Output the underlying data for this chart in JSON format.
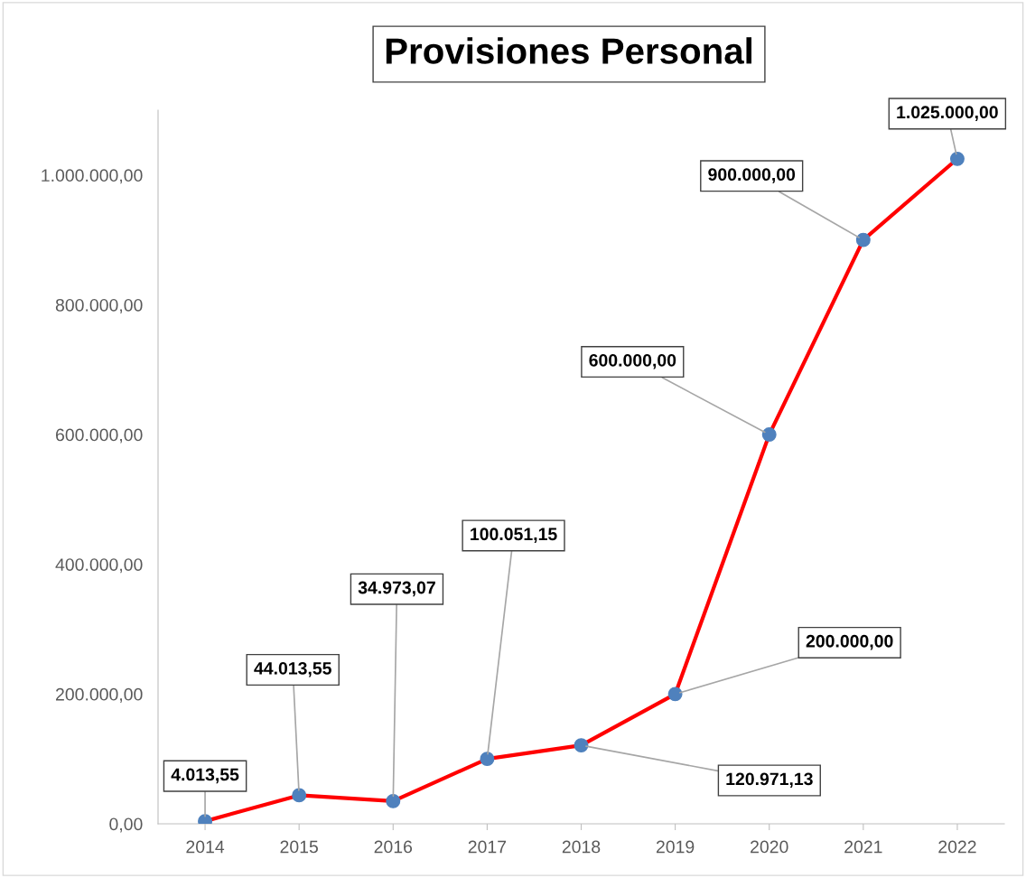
{
  "chart_data": {
    "type": "line",
    "title": "Provisiones Personal",
    "categories": [
      "2014",
      "2015",
      "2016",
      "2017",
      "2018",
      "2019",
      "2020",
      "2021",
      "2022"
    ],
    "series": [
      {
        "color": "#ff0000",
        "colors": [
          "#4f81bd",
          "#4f81bd",
          "#4f81bd",
          "#4f81bd",
          "#4f81bd",
          "#4f81bd",
          "#4f81bd",
          "#4f81bd",
          "#4f81bd"
        ],
        "values": [
          4013.55,
          44013.55,
          34973.07,
          100051.15,
          120971.13,
          200000,
          600000,
          900000,
          1025000
        ],
        "value_labels": [
          "4.013,55",
          "44.013,55",
          "34.973,07",
          "100.051,15",
          "120.971,13",
          "200.000,00",
          "600.000,00",
          "900.000,00",
          "1.025.000,00"
        ]
      }
    ],
    "ylim": [
      0,
      1100000
    ],
    "yticks": [
      {
        "value": 0,
        "label": "0,00"
      },
      {
        "value": 200000,
        "label": "200.000,00"
      },
      {
        "value": 400000,
        "label": "400.000,00"
      },
      {
        "value": 600000,
        "label": "600.000,00"
      },
      {
        "value": 800000,
        "label": "800.000,00"
      },
      {
        "value": 1000000,
        "label": "1.000.000,00"
      }
    ],
    "grid": false,
    "legend": false,
    "marker": "circle",
    "line_style": "solid"
  }
}
